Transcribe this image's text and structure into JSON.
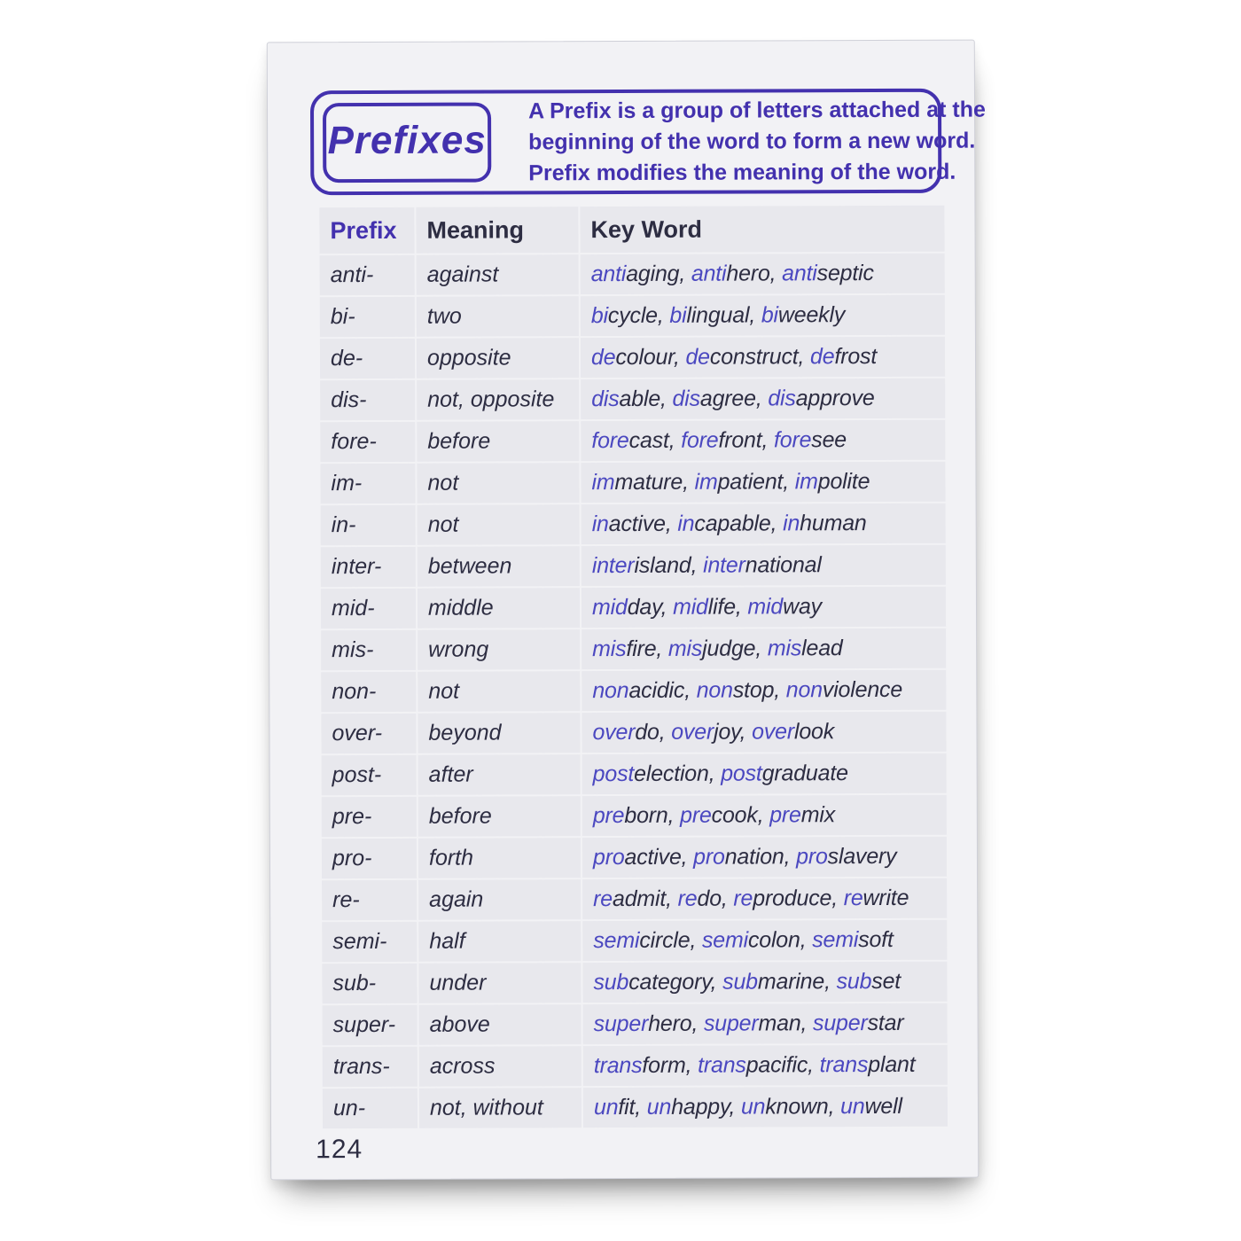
{
  "header": {
    "title": "Prefixes",
    "description_lines": [
      "A Prefix is a group of letters attached at the",
      "beginning of the word to form a new word.",
      "Prefix modifies the meaning of the word."
    ]
  },
  "table": {
    "columns": [
      "Prefix",
      "Meaning",
      "Key Word"
    ],
    "rows": [
      {
        "prefix": "anti-",
        "meaning": "against",
        "keywords": [
          {
            "pre": "anti",
            "rest": "aging"
          },
          {
            "pre": "anti",
            "rest": "hero"
          },
          {
            "pre": "anti",
            "rest": "septic"
          }
        ]
      },
      {
        "prefix": "bi-",
        "meaning": "two",
        "keywords": [
          {
            "pre": "bi",
            "rest": "cycle"
          },
          {
            "pre": "bi",
            "rest": "lingual"
          },
          {
            "pre": "bi",
            "rest": "weekly"
          }
        ]
      },
      {
        "prefix": "de-",
        "meaning": "opposite",
        "keywords": [
          {
            "pre": "de",
            "rest": "colour"
          },
          {
            "pre": "de",
            "rest": "construct"
          },
          {
            "pre": "de",
            "rest": "frost"
          }
        ]
      },
      {
        "prefix": "dis-",
        "meaning": "not, opposite",
        "keywords": [
          {
            "pre": "dis",
            "rest": "able"
          },
          {
            "pre": "dis",
            "rest": "agree"
          },
          {
            "pre": "dis",
            "rest": "approve"
          }
        ]
      },
      {
        "prefix": "fore-",
        "meaning": "before",
        "keywords": [
          {
            "pre": "fore",
            "rest": "cast"
          },
          {
            "pre": "fore",
            "rest": "front"
          },
          {
            "pre": "fore",
            "rest": "see"
          }
        ]
      },
      {
        "prefix": "im-",
        "meaning": "not",
        "keywords": [
          {
            "pre": "im",
            "rest": "mature"
          },
          {
            "pre": "im",
            "rest": "patient"
          },
          {
            "pre": "im",
            "rest": "polite"
          }
        ]
      },
      {
        "prefix": "in-",
        "meaning": "not",
        "keywords": [
          {
            "pre": "in",
            "rest": "active"
          },
          {
            "pre": "in",
            "rest": "capable"
          },
          {
            "pre": "in",
            "rest": "human"
          }
        ]
      },
      {
        "prefix": "inter-",
        "meaning": "between",
        "keywords": [
          {
            "pre": "inter",
            "rest": "island"
          },
          {
            "pre": "inter",
            "rest": "national"
          }
        ]
      },
      {
        "prefix": "mid-",
        "meaning": "middle",
        "keywords": [
          {
            "pre": "mid",
            "rest": "day"
          },
          {
            "pre": "mid",
            "rest": "life"
          },
          {
            "pre": "mid",
            "rest": "way"
          }
        ]
      },
      {
        "prefix": "mis-",
        "meaning": "wrong",
        "keywords": [
          {
            "pre": "mis",
            "rest": "fire"
          },
          {
            "pre": "mis",
            "rest": "judge"
          },
          {
            "pre": "mis",
            "rest": "lead"
          }
        ]
      },
      {
        "prefix": "non-",
        "meaning": "not",
        "keywords": [
          {
            "pre": "non",
            "rest": "acidic"
          },
          {
            "pre": "non",
            "rest": "stop"
          },
          {
            "pre": "non",
            "rest": "violence"
          }
        ]
      },
      {
        "prefix": "over-",
        "meaning": "beyond",
        "keywords": [
          {
            "pre": "over",
            "rest": "do"
          },
          {
            "pre": "over",
            "rest": "joy"
          },
          {
            "pre": "over",
            "rest": "look"
          }
        ]
      },
      {
        "prefix": "post-",
        "meaning": "after",
        "keywords": [
          {
            "pre": "post",
            "rest": "election"
          },
          {
            "pre": "post",
            "rest": "graduate"
          }
        ]
      },
      {
        "prefix": "pre-",
        "meaning": "before",
        "keywords": [
          {
            "pre": "pre",
            "rest": "born"
          },
          {
            "pre": "pre",
            "rest": "cook"
          },
          {
            "pre": "pre",
            "rest": "mix"
          }
        ]
      },
      {
        "prefix": "pro-",
        "meaning": "forth",
        "keywords": [
          {
            "pre": "pro",
            "rest": "active"
          },
          {
            "pre": "pro",
            "rest": "nation"
          },
          {
            "pre": "pro",
            "rest": "slavery"
          }
        ]
      },
      {
        "prefix": "re-",
        "meaning": "again",
        "keywords": [
          {
            "pre": "re",
            "rest": "admit"
          },
          {
            "pre": "re",
            "rest": "do"
          },
          {
            "pre": "re",
            "rest": "produce"
          },
          {
            "pre": "re",
            "rest": "write"
          }
        ]
      },
      {
        "prefix": "semi-",
        "meaning": "half",
        "keywords": [
          {
            "pre": "semi",
            "rest": "circle"
          },
          {
            "pre": "semi",
            "rest": "colon"
          },
          {
            "pre": "semi",
            "rest": "soft"
          }
        ]
      },
      {
        "prefix": "sub-",
        "meaning": "under",
        "keywords": [
          {
            "pre": "sub",
            "rest": "category"
          },
          {
            "pre": "sub",
            "rest": "marine"
          },
          {
            "pre": "sub",
            "rest": "set"
          }
        ]
      },
      {
        "prefix": "super-",
        "meaning": "above",
        "keywords": [
          {
            "pre": "super",
            "rest": "hero"
          },
          {
            "pre": "super",
            "rest": "man"
          },
          {
            "pre": "super",
            "rest": "star"
          }
        ]
      },
      {
        "prefix": "trans-",
        "meaning": "across",
        "keywords": [
          {
            "pre": "trans",
            "rest": "form"
          },
          {
            "pre": "trans",
            "rest": "pacific"
          },
          {
            "pre": "trans",
            "rest": "plant"
          }
        ]
      },
      {
        "prefix": "un-",
        "meaning": "not, without",
        "keywords": [
          {
            "pre": "un",
            "rest": "fit"
          },
          {
            "pre": "un",
            "rest": "happy"
          },
          {
            "pre": "un",
            "rest": "known"
          },
          {
            "pre": "un",
            "rest": "well"
          }
        ]
      }
    ],
    "keyword_separator": ", "
  },
  "page": {
    "number": "124"
  },
  "colors": {
    "accent": "#4331ae",
    "prefix-blue": "#4b48c0",
    "ink": "#2d2d42",
    "card-bg": "#f2f2f5",
    "row-bg": "#e8e8ed",
    "grid-line": "#f5f5f8"
  }
}
